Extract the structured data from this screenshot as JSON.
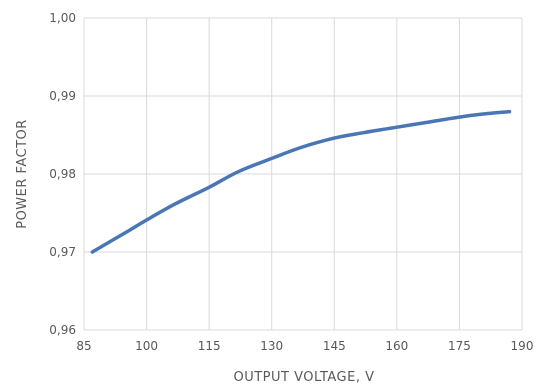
{
  "chart_data": {
    "type": "line",
    "xlabel": "OUTPUT VOLTAGE, V",
    "ylabel": "POWER FACTOR",
    "xlim": [
      85,
      190
    ],
    "ylim": [
      0.96,
      1.0
    ],
    "x_ticks": [
      85,
      100,
      115,
      130,
      145,
      160,
      175,
      190
    ],
    "x_tick_labels": [
      "85",
      "100",
      "115",
      "130",
      "145",
      "160",
      "175",
      "190"
    ],
    "y_ticks": [
      0.96,
      0.97,
      0.98,
      0.99,
      1.0
    ],
    "y_tick_labels": [
      "0,96",
      "0,97",
      "0,98",
      "0,99",
      "1,00"
    ],
    "grid": true,
    "series": [
      {
        "color": "#4a76b5",
        "x": [
          87,
          95,
          100,
          107,
          115,
          122,
          130,
          137,
          145,
          152,
          160,
          167,
          175,
          181,
          187
        ],
        "y": [
          0.97,
          0.9725,
          0.9741,
          0.9762,
          0.9783,
          0.9803,
          0.982,
          0.9834,
          0.9846,
          0.9853,
          0.986,
          0.9866,
          0.9873,
          0.9877,
          0.988
        ]
      }
    ]
  }
}
